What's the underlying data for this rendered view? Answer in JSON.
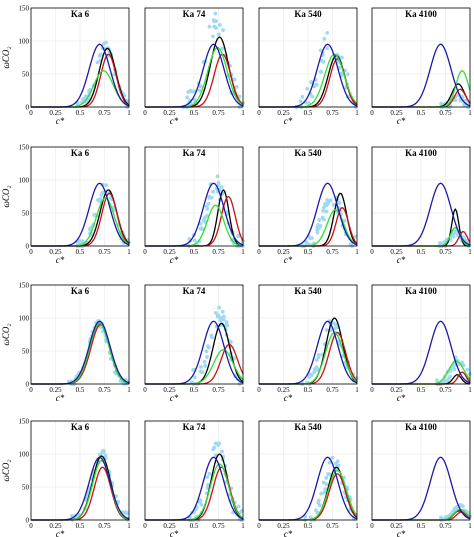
{
  "chart_data": {
    "type": "line",
    "layout_rows": 4,
    "layout_cols": 4,
    "column_titles": [
      "Ka 6",
      "Ka 74",
      "Ka 540",
      "Ka 4100"
    ],
    "xlabel": "c*",
    "ylabel": "ω̇CO₂",
    "xlim": [
      0,
      1
    ],
    "ylim": [
      0,
      150
    ],
    "x_ticks": [
      "0",
      "0.25",
      "0.5",
      "0.75",
      "1"
    ],
    "y_ticks": [
      "0",
      "50",
      "100",
      "150"
    ],
    "grid": true,
    "series_colors": {
      "reference": "#1a1aaa",
      "black": "#000000",
      "red": "#cc1111",
      "green": "#33dd33",
      "scatter": "#9fd9f2"
    },
    "panels": [
      {
        "row": 0,
        "col": 0,
        "title": "Ka 6",
        "scatter": {
          "c": 0.76,
          "w": 0.13,
          "h": 90,
          "spread": 8
        },
        "curves": [
          {
            "color": "black",
            "c": 0.78,
            "w": 0.12,
            "h": 89
          },
          {
            "color": "red",
            "c": 0.79,
            "w": 0.11,
            "h": 80
          },
          {
            "color": "green",
            "c": 0.74,
            "w": 0.14,
            "h": 55
          }
        ]
      },
      {
        "row": 0,
        "col": 1,
        "title": "Ka 74",
        "scatter": {
          "c": 0.72,
          "w": 0.15,
          "h": 130,
          "spread": 20
        },
        "curves": [
          {
            "color": "black",
            "c": 0.76,
            "w": 0.13,
            "h": 106
          },
          {
            "color": "red",
            "c": 0.79,
            "w": 0.12,
            "h": 80
          },
          {
            "color": "green",
            "c": 0.74,
            "w": 0.14,
            "h": 90
          }
        ]
      },
      {
        "row": 0,
        "col": 2,
        "title": "Ka 540",
        "scatter": {
          "c": 0.73,
          "w": 0.16,
          "h": 100,
          "spread": 20
        },
        "curves": [
          {
            "color": "black",
            "c": 0.79,
            "w": 0.12,
            "h": 78
          },
          {
            "color": "red",
            "c": 0.8,
            "w": 0.11,
            "h": 73
          },
          {
            "color": "green",
            "c": 0.77,
            "w": 0.14,
            "h": 80
          }
        ]
      },
      {
        "row": 0,
        "col": 3,
        "title": "Ka 4100",
        "scatter": {
          "c": 0.88,
          "w": 0.08,
          "h": 15,
          "spread": 5
        },
        "curves": [
          {
            "color": "black",
            "c": 0.88,
            "w": 0.09,
            "h": 35
          },
          {
            "color": "red",
            "c": 0.9,
            "w": 0.08,
            "h": 27
          },
          {
            "color": "green",
            "c": 0.92,
            "w": 0.09,
            "h": 55
          }
        ]
      },
      {
        "row": 1,
        "col": 0,
        "title": "Ka 6",
        "scatter": {
          "c": 0.76,
          "w": 0.13,
          "h": 90,
          "spread": 8
        },
        "curves": [
          {
            "color": "black",
            "c": 0.79,
            "w": 0.12,
            "h": 85
          },
          {
            "color": "red",
            "c": 0.8,
            "w": 0.11,
            "h": 80
          },
          {
            "color": "green",
            "c": 0.76,
            "w": 0.13,
            "h": 73
          }
        ]
      },
      {
        "row": 1,
        "col": 1,
        "title": "Ka 74",
        "scatter": {
          "c": 0.72,
          "w": 0.13,
          "h": 95,
          "spread": 15
        },
        "curves": [
          {
            "color": "black",
            "c": 0.8,
            "w": 0.08,
            "h": 85
          },
          {
            "color": "red",
            "c": 0.85,
            "w": 0.1,
            "h": 75
          },
          {
            "color": "green",
            "c": 0.72,
            "w": 0.12,
            "h": 62
          }
        ]
      },
      {
        "row": 1,
        "col": 2,
        "title": "Ka 540",
        "scatter": {
          "c": 0.75,
          "w": 0.14,
          "h": 70,
          "spread": 12
        },
        "curves": [
          {
            "color": "black",
            "c": 0.83,
            "w": 0.09,
            "h": 80
          },
          {
            "color": "red",
            "c": 0.85,
            "w": 0.09,
            "h": 58
          },
          {
            "color": "green",
            "c": 0.78,
            "w": 0.12,
            "h": 55
          }
        ]
      },
      {
        "row": 1,
        "col": 3,
        "title": "Ka 4100",
        "scatter": {
          "c": 0.86,
          "w": 0.08,
          "h": 20,
          "spread": 5
        },
        "curves": [
          {
            "color": "black",
            "c": 0.85,
            "w": 0.05,
            "h": 56
          },
          {
            "color": "red",
            "c": 0.93,
            "w": 0.06,
            "h": 22
          },
          {
            "color": "green",
            "c": 0.85,
            "w": 0.07,
            "h": 28
          }
        ]
      },
      {
        "row": 2,
        "col": 0,
        "title": "Ka 6",
        "scatter": {
          "c": 0.69,
          "w": 0.14,
          "h": 93,
          "spread": 5
        },
        "curves": [
          {
            "color": "black",
            "c": 0.7,
            "w": 0.14,
            "h": 92
          },
          {
            "color": "red",
            "c": 0.71,
            "w": 0.14,
            "h": 90
          },
          {
            "color": "green",
            "c": 0.7,
            "w": 0.14,
            "h": 92
          }
        ]
      },
      {
        "row": 2,
        "col": 1,
        "title": "Ka 74",
        "scatter": {
          "c": 0.76,
          "w": 0.13,
          "h": 110,
          "spread": 20
        },
        "curves": [
          {
            "color": "black",
            "c": 0.78,
            "w": 0.12,
            "h": 92
          },
          {
            "color": "red",
            "c": 0.86,
            "w": 0.12,
            "h": 60
          },
          {
            "color": "green",
            "c": 0.8,
            "w": 0.14,
            "h": 52
          }
        ]
      },
      {
        "row": 2,
        "col": 2,
        "title": "Ka 540",
        "scatter": {
          "c": 0.75,
          "w": 0.14,
          "h": 90,
          "spread": 12
        },
        "curves": [
          {
            "color": "black",
            "c": 0.77,
            "w": 0.12,
            "h": 100
          },
          {
            "color": "red",
            "c": 0.8,
            "w": 0.12,
            "h": 78
          },
          {
            "color": "green",
            "c": 0.77,
            "w": 0.13,
            "h": 78
          }
        ]
      },
      {
        "row": 2,
        "col": 3,
        "title": "Ka 4100",
        "scatter": {
          "c": 0.88,
          "w": 0.1,
          "h": 35,
          "spread": 8
        },
        "curves": [
          {
            "color": "black",
            "c": 0.87,
            "w": 0.06,
            "h": 14
          },
          {
            "color": "red",
            "c": 0.92,
            "w": 0.06,
            "h": 18
          },
          {
            "color": "green",
            "c": 0.86,
            "w": 0.11,
            "h": 35
          }
        ]
      },
      {
        "row": 3,
        "col": 0,
        "title": "Ka 6",
        "scatter": {
          "c": 0.72,
          "w": 0.14,
          "h": 100,
          "spread": 8
        },
        "curves": [
          {
            "color": "black",
            "c": 0.72,
            "w": 0.13,
            "h": 97
          },
          {
            "color": "red",
            "c": 0.73,
            "w": 0.12,
            "h": 80
          },
          {
            "color": "green",
            "c": 0.72,
            "w": 0.13,
            "h": 90
          }
        ]
      },
      {
        "row": 3,
        "col": 1,
        "title": "Ka 74",
        "scatter": {
          "c": 0.74,
          "w": 0.13,
          "h": 110,
          "spread": 15
        },
        "curves": [
          {
            "color": "black",
            "c": 0.76,
            "w": 0.12,
            "h": 100
          },
          {
            "color": "red",
            "c": 0.78,
            "w": 0.12,
            "h": 80
          },
          {
            "color": "green",
            "c": 0.76,
            "w": 0.13,
            "h": 85
          }
        ]
      },
      {
        "row": 3,
        "col": 2,
        "title": "Ka 540",
        "scatter": {
          "c": 0.77,
          "w": 0.14,
          "h": 90,
          "spread": 12
        },
        "curves": [
          {
            "color": "black",
            "c": 0.79,
            "w": 0.12,
            "h": 80
          },
          {
            "color": "red",
            "c": 0.8,
            "w": 0.12,
            "h": 70
          },
          {
            "color": "green",
            "c": 0.8,
            "w": 0.13,
            "h": 75
          }
        ]
      },
      {
        "row": 3,
        "col": 3,
        "title": "Ka 4100",
        "scatter": {
          "c": 0.9,
          "w": 0.09,
          "h": 20,
          "spread": 4
        },
        "curves": [
          {
            "color": "black",
            "c": 0.89,
            "w": 0.08,
            "h": 14
          },
          {
            "color": "red",
            "c": 0.91,
            "w": 0.07,
            "h": 12
          },
          {
            "color": "green",
            "c": 0.9,
            "w": 0.09,
            "h": 16
          }
        ]
      }
    ],
    "reference_curve": {
      "color": "reference",
      "c": 0.7,
      "w": 0.15,
      "h": 95
    }
  }
}
